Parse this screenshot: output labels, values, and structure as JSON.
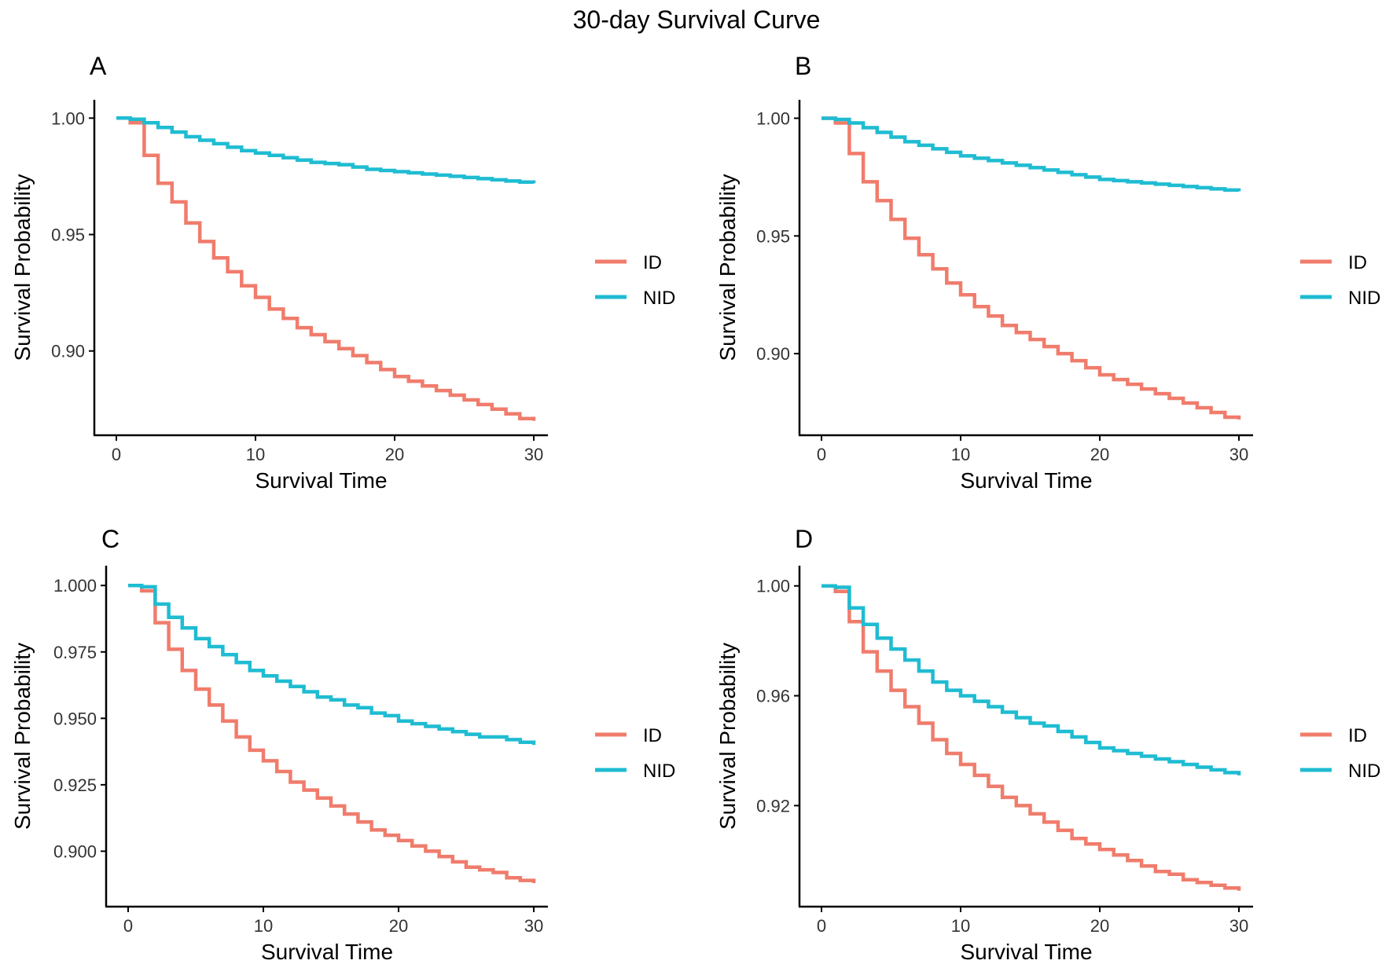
{
  "figure_title": "30-day Survival Curve",
  "colors": {
    "ID": "#F07C6C",
    "NID": "#1FBCD2"
  },
  "chart_data": [
    {
      "panel": "A",
      "type": "line",
      "step": true,
      "xlabel": "Survival Time",
      "ylabel": "Survival Probability",
      "xlim": [
        0,
        30
      ],
      "ylim": [
        0.8665,
        1.0045
      ],
      "xticks": [
        0,
        10,
        20,
        30
      ],
      "xtick_labels": [
        "0",
        "10",
        "20",
        "30"
      ],
      "yticks": [
        0.9,
        0.95,
        1.0
      ],
      "ytick_labels": [
        "0.90",
        "0.95",
        "1.00"
      ],
      "legend": [
        "ID",
        "NID"
      ],
      "legend_position": "right",
      "series": [
        {
          "name": "ID",
          "x": [
            0,
            1,
            2,
            3,
            4,
            5,
            6,
            7,
            8,
            9,
            10,
            11,
            12,
            13,
            14,
            15,
            16,
            17,
            18,
            19,
            20,
            21,
            22,
            23,
            24,
            25,
            26,
            27,
            28,
            29,
            30
          ],
          "y": [
            1.0,
            0.998,
            0.984,
            0.972,
            0.964,
            0.955,
            0.947,
            0.94,
            0.934,
            0.928,
            0.923,
            0.918,
            0.914,
            0.91,
            0.907,
            0.904,
            0.901,
            0.898,
            0.895,
            0.892,
            0.889,
            0.887,
            0.885,
            0.883,
            0.881,
            0.879,
            0.877,
            0.875,
            0.873,
            0.871,
            0.87
          ]
        },
        {
          "name": "NID",
          "x": [
            0,
            1,
            2,
            3,
            4,
            5,
            6,
            7,
            8,
            9,
            10,
            11,
            12,
            13,
            14,
            15,
            16,
            17,
            18,
            19,
            20,
            21,
            22,
            23,
            24,
            25,
            26,
            27,
            28,
            29,
            30
          ],
          "y": [
            1.0,
            0.9995,
            0.998,
            0.996,
            0.994,
            0.992,
            0.9905,
            0.989,
            0.9875,
            0.986,
            0.985,
            0.984,
            0.983,
            0.982,
            0.981,
            0.9805,
            0.98,
            0.979,
            0.978,
            0.9775,
            0.977,
            0.9765,
            0.976,
            0.9755,
            0.975,
            0.9745,
            0.974,
            0.9735,
            0.973,
            0.9725,
            0.972
          ]
        }
      ]
    },
    {
      "panel": "B",
      "type": "line",
      "step": true,
      "xlabel": "Survival Time",
      "ylabel": "Survival Probability",
      "xlim": [
        0,
        30
      ],
      "ylim": [
        0.868,
        1.0045
      ],
      "xticks": [
        0,
        10,
        20,
        30
      ],
      "xtick_labels": [
        "0",
        "10",
        "20",
        "30"
      ],
      "yticks": [
        0.9,
        0.95,
        1.0
      ],
      "ytick_labels": [
        "0.90",
        "0.95",
        "1.00"
      ],
      "legend": [
        "ID",
        "NID"
      ],
      "legend_position": "right",
      "series": [
        {
          "name": "ID",
          "x": [
            0,
            1,
            2,
            3,
            4,
            5,
            6,
            7,
            8,
            9,
            10,
            11,
            12,
            13,
            14,
            15,
            16,
            17,
            18,
            19,
            20,
            21,
            22,
            23,
            24,
            25,
            26,
            27,
            28,
            29,
            30
          ],
          "y": [
            1.0,
            0.998,
            0.985,
            0.973,
            0.965,
            0.957,
            0.949,
            0.942,
            0.936,
            0.93,
            0.925,
            0.92,
            0.916,
            0.912,
            0.909,
            0.906,
            0.903,
            0.9,
            0.897,
            0.894,
            0.891,
            0.889,
            0.887,
            0.885,
            0.883,
            0.881,
            0.879,
            0.877,
            0.875,
            0.873,
            0.872
          ]
        },
        {
          "name": "NID",
          "x": [
            0,
            1,
            2,
            3,
            4,
            5,
            6,
            7,
            8,
            9,
            10,
            11,
            12,
            13,
            14,
            15,
            16,
            17,
            18,
            19,
            20,
            21,
            22,
            23,
            24,
            25,
            26,
            27,
            28,
            29,
            30
          ],
          "y": [
            1.0,
            0.9995,
            0.998,
            0.996,
            0.994,
            0.992,
            0.99,
            0.9885,
            0.987,
            0.9855,
            0.984,
            0.983,
            0.982,
            0.981,
            0.98,
            0.979,
            0.978,
            0.977,
            0.976,
            0.975,
            0.974,
            0.9735,
            0.973,
            0.9725,
            0.972,
            0.9715,
            0.971,
            0.9705,
            0.97,
            0.9695,
            0.969
          ]
        }
      ]
    },
    {
      "panel": "C",
      "type": "line",
      "step": true,
      "xlabel": "Survival Time",
      "ylabel": "Survival Probability",
      "xlim": [
        0,
        30
      ],
      "ylim": [
        0.8815,
        1.0045
      ],
      "xticks": [
        0,
        10,
        20,
        30
      ],
      "xtick_labels": [
        "0",
        "10",
        "20",
        "30"
      ],
      "yticks": [
        0.9,
        0.925,
        0.95,
        0.975,
        1.0
      ],
      "ytick_labels": [
        "0.900",
        "0.925",
        "0.950",
        "0.975",
        "1.000"
      ],
      "legend": [
        "ID",
        "NID"
      ],
      "legend_position": "right",
      "series": [
        {
          "name": "ID",
          "x": [
            0,
            1,
            2,
            3,
            4,
            5,
            6,
            7,
            8,
            9,
            10,
            11,
            12,
            13,
            14,
            15,
            16,
            17,
            18,
            19,
            20,
            21,
            22,
            23,
            24,
            25,
            26,
            27,
            28,
            29,
            30
          ],
          "y": [
            1.0,
            0.998,
            0.986,
            0.976,
            0.968,
            0.961,
            0.955,
            0.949,
            0.943,
            0.938,
            0.934,
            0.93,
            0.926,
            0.923,
            0.92,
            0.917,
            0.914,
            0.911,
            0.908,
            0.906,
            0.904,
            0.902,
            0.9,
            0.898,
            0.896,
            0.894,
            0.893,
            0.892,
            0.89,
            0.889,
            0.888
          ]
        },
        {
          "name": "NID",
          "x": [
            0,
            1,
            2,
            3,
            4,
            5,
            6,
            7,
            8,
            9,
            10,
            11,
            12,
            13,
            14,
            15,
            16,
            17,
            18,
            19,
            20,
            21,
            22,
            23,
            24,
            25,
            26,
            27,
            28,
            29,
            30
          ],
          "y": [
            1.0,
            0.9995,
            0.993,
            0.988,
            0.984,
            0.98,
            0.977,
            0.974,
            0.971,
            0.968,
            0.966,
            0.964,
            0.962,
            0.96,
            0.958,
            0.957,
            0.955,
            0.954,
            0.952,
            0.951,
            0.949,
            0.948,
            0.947,
            0.946,
            0.945,
            0.944,
            0.943,
            0.943,
            0.942,
            0.941,
            0.94
          ]
        }
      ]
    },
    {
      "panel": "D",
      "type": "line",
      "step": true,
      "xlabel": "Survival Time",
      "ylabel": "Survival Probability",
      "xlim": [
        0,
        30
      ],
      "ylim": [
        0.8855,
        1.0045
      ],
      "xticks": [
        0,
        10,
        20,
        30
      ],
      "xtick_labels": [
        "0",
        "10",
        "20",
        "30"
      ],
      "yticks": [
        0.92,
        0.96,
        1.0
      ],
      "ytick_labels": [
        "0.92",
        "0.96",
        "1.00"
      ],
      "legend": [
        "ID",
        "NID"
      ],
      "legend_position": "right",
      "series": [
        {
          "name": "ID",
          "x": [
            0,
            1,
            2,
            3,
            4,
            5,
            6,
            7,
            8,
            9,
            10,
            11,
            12,
            13,
            14,
            15,
            16,
            17,
            18,
            19,
            20,
            21,
            22,
            23,
            24,
            25,
            26,
            27,
            28,
            29,
            30
          ],
          "y": [
            1.0,
            0.998,
            0.987,
            0.976,
            0.969,
            0.962,
            0.956,
            0.95,
            0.944,
            0.939,
            0.935,
            0.931,
            0.927,
            0.923,
            0.92,
            0.917,
            0.914,
            0.911,
            0.908,
            0.906,
            0.904,
            0.902,
            0.9,
            0.898,
            0.896,
            0.895,
            0.893,
            0.892,
            0.891,
            0.89,
            0.889
          ]
        },
        {
          "name": "NID",
          "x": [
            0,
            1,
            2,
            3,
            4,
            5,
            6,
            7,
            8,
            9,
            10,
            11,
            12,
            13,
            14,
            15,
            16,
            17,
            18,
            19,
            20,
            21,
            22,
            23,
            24,
            25,
            26,
            27,
            28,
            29,
            30
          ],
          "y": [
            1.0,
            0.9995,
            0.992,
            0.986,
            0.981,
            0.977,
            0.973,
            0.969,
            0.965,
            0.962,
            0.96,
            0.958,
            0.956,
            0.954,
            0.952,
            0.95,
            0.949,
            0.947,
            0.945,
            0.943,
            0.941,
            0.94,
            0.939,
            0.938,
            0.937,
            0.936,
            0.935,
            0.934,
            0.933,
            0.932,
            0.931
          ]
        }
      ]
    }
  ]
}
